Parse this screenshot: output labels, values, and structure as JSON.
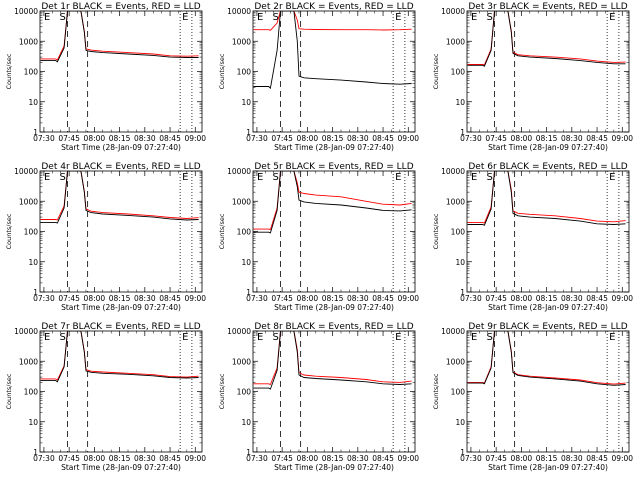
{
  "chart_data": [
    {
      "title": "Det 1r BLACK = Events, RED = LLD",
      "type": "line",
      "xlabel": "Start Time (28-Jan-09 07:27:40)",
      "ylabel": "Counts/sec",
      "x_ticks": [
        "07:30",
        "07:45",
        "08:00",
        "08:15",
        "08:30",
        "08:45",
        "09:00"
      ],
      "xlim": [
        "07:27:40",
        "09:04:00"
      ],
      "y_scale": "log",
      "ylim": [
        1,
        10000
      ],
      "y_ticks": [
        "1",
        "10",
        "100",
        "1000",
        "10000"
      ],
      "markers": [
        "E",
        "S",
        "E"
      ],
      "dashed_lines": [
        "07:44",
        "07:56"
      ],
      "dotted_lines": [
        "08:51",
        "08:58"
      ],
      "series": [
        {
          "color": "#000000",
          "x": [
            "07:28",
            "07:37",
            "07:38",
            "07:42",
            "07:44",
            "07:52",
            "07:54",
            "07:55",
            "07:58",
            "08:05",
            "08:20",
            "08:35",
            "08:45",
            "08:55",
            "09:02"
          ],
          "values": [
            230,
            230,
            210,
            600,
            10000,
            10000,
            2000,
            500,
            460,
            420,
            380,
            340,
            300,
            290,
            290
          ]
        },
        {
          "color": "#ff0000",
          "x": [
            "07:28",
            "07:37",
            "07:38",
            "07:42",
            "07:44",
            "07:52",
            "07:54",
            "07:55",
            "07:58",
            "08:05",
            "08:20",
            "08:35",
            "08:45",
            "08:55",
            "09:02"
          ],
          "values": [
            260,
            260,
            240,
            700,
            10000,
            10000,
            2200,
            560,
            510,
            470,
            420,
            380,
            330,
            320,
            330
          ]
        }
      ]
    },
    {
      "title": "Det 2r BLACK = Events, RED = LLD",
      "type": "line",
      "xlabel": "Start Time (28-Jan-09 07:27:40)",
      "ylabel": "Counts/sec",
      "x_ticks": [
        "07:30",
        "07:45",
        "08:00",
        "08:15",
        "08:30",
        "08:45",
        "09:00"
      ],
      "xlim": [
        "07:27:40",
        "09:04:00"
      ],
      "y_scale": "log",
      "ylim": [
        1,
        10000
      ],
      "y_ticks": [
        "1",
        "10",
        "100",
        "1000",
        "10000"
      ],
      "markers": [
        "E",
        "S",
        "E"
      ],
      "dashed_lines": [
        "07:44",
        "07:56"
      ],
      "dotted_lines": [
        "08:51",
        "08:58"
      ],
      "series": [
        {
          "color": "#000000",
          "x": [
            "07:28",
            "07:37",
            "07:38",
            "07:42",
            "07:44",
            "07:52",
            "07:54",
            "07:55",
            "07:58",
            "08:05",
            "08:20",
            "08:35",
            "08:45",
            "08:55",
            "09:02"
          ],
          "values": [
            32,
            32,
            28,
            500,
            10000,
            10000,
            1000,
            70,
            62,
            58,
            52,
            45,
            40,
            38,
            40
          ]
        },
        {
          "color": "#ff0000",
          "x": [
            "07:28",
            "07:37",
            "07:38",
            "07:42",
            "07:44",
            "07:52",
            "07:54",
            "07:55",
            "07:58",
            "08:05",
            "08:20",
            "08:35",
            "08:45",
            "08:55",
            "09:02"
          ],
          "values": [
            2400,
            2400,
            2300,
            4000,
            10000,
            10000,
            5000,
            2600,
            2500,
            2450,
            2400,
            2400,
            2350,
            2400,
            2500
          ]
        }
      ]
    },
    {
      "title": "Det 3r BLACK = Events, RED = LLD",
      "type": "line",
      "xlabel": "Start Time (28-Jan-09 07:27:40)",
      "ylabel": "Counts/sec",
      "x_ticks": [
        "07:30",
        "07:45",
        "08:00",
        "08:15",
        "08:30",
        "08:45",
        "09:00"
      ],
      "xlim": [
        "07:27:40",
        "09:04:00"
      ],
      "y_scale": "log",
      "ylim": [
        1,
        10000
      ],
      "y_ticks": [
        "1",
        "10",
        "100",
        "1000",
        "10000"
      ],
      "markers": [
        "E",
        "S",
        "E"
      ],
      "dashed_lines": [
        "07:44",
        "07:56"
      ],
      "dotted_lines": [
        "08:51",
        "08:58"
      ],
      "series": [
        {
          "color": "#000000",
          "x": [
            "07:28",
            "07:37",
            "07:38",
            "07:42",
            "07:44",
            "07:52",
            "07:54",
            "07:55",
            "07:58",
            "08:05",
            "08:20",
            "08:35",
            "08:45",
            "08:55",
            "09:02"
          ],
          "values": [
            160,
            160,
            150,
            500,
            10000,
            10000,
            2000,
            400,
            330,
            300,
            270,
            230,
            200,
            180,
            180
          ]
        },
        {
          "color": "#ff0000",
          "x": [
            "07:28",
            "07:37",
            "07:38",
            "07:42",
            "07:44",
            "07:52",
            "07:54",
            "07:55",
            "07:58",
            "08:05",
            "08:20",
            "08:35",
            "08:45",
            "08:55",
            "09:02"
          ],
          "values": [
            170,
            170,
            165,
            550,
            10000,
            10000,
            2200,
            430,
            360,
            330,
            300,
            260,
            220,
            200,
            205
          ]
        }
      ]
    },
    {
      "title": "Det 4r BLACK = Events, RED = LLD",
      "type": "line",
      "xlabel": "Start Time (28-Jan-09 07:27:40)",
      "ylabel": "Counts/sec",
      "x_ticks": [
        "07:30",
        "07:45",
        "08:00",
        "08:15",
        "08:30",
        "08:45",
        "09:00"
      ],
      "xlim": [
        "07:27:40",
        "09:04:00"
      ],
      "y_scale": "log",
      "ylim": [
        1,
        10000
      ],
      "y_ticks": [
        "1",
        "10",
        "100",
        "1000",
        "10000"
      ],
      "markers": [
        "E",
        "S",
        "E"
      ],
      "dashed_lines": [
        "07:44",
        "07:56"
      ],
      "dotted_lines": [
        "08:51",
        "08:58"
      ],
      "series": [
        {
          "color": "#000000",
          "x": [
            "07:28",
            "07:37",
            "07:38",
            "07:42",
            "07:44",
            "07:52",
            "07:54",
            "07:55",
            "07:58",
            "08:05",
            "08:20",
            "08:35",
            "08:45",
            "08:55",
            "09:02"
          ],
          "values": [
            200,
            200,
            190,
            600,
            10000,
            10000,
            2000,
            500,
            420,
            380,
            340,
            300,
            260,
            240,
            250
          ]
        },
        {
          "color": "#ff0000",
          "x": [
            "07:28",
            "07:37",
            "07:38",
            "07:42",
            "07:44",
            "07:52",
            "07:54",
            "07:55",
            "07:58",
            "08:05",
            "08:20",
            "08:35",
            "08:45",
            "08:55",
            "09:02"
          ],
          "values": [
            250,
            250,
            240,
            700,
            10000,
            10000,
            2200,
            560,
            470,
            420,
            380,
            330,
            290,
            270,
            285
          ]
        }
      ]
    },
    {
      "title": "Det 5r BLACK = Events, RED = LLD",
      "type": "line",
      "xlabel": "Start Time (28-Jan-09 07:27:40)",
      "ylabel": "Counts/sec",
      "x_ticks": [
        "07:30",
        "07:45",
        "08:00",
        "08:15",
        "08:30",
        "08:45",
        "09:00"
      ],
      "xlim": [
        "07:27:40",
        "09:04:00"
      ],
      "y_scale": "log",
      "ylim": [
        1,
        10000
      ],
      "y_ticks": [
        "1",
        "10",
        "100",
        "1000",
        "10000"
      ],
      "markers": [
        "E",
        "S",
        "E"
      ],
      "dashed_lines": [
        "07:44",
        "07:56"
      ],
      "dotted_lines": [
        "08:51",
        "08:58"
      ],
      "series": [
        {
          "color": "#000000",
          "x": [
            "07:28",
            "07:37",
            "07:38",
            "07:42",
            "07:44",
            "07:52",
            "07:54",
            "07:55",
            "07:58",
            "08:05",
            "08:20",
            "08:35",
            "08:45",
            "08:55",
            "09:02"
          ],
          "values": [
            95,
            95,
            90,
            500,
            10000,
            10000,
            3000,
            1100,
            950,
            850,
            750,
            600,
            500,
            480,
            520
          ]
        },
        {
          "color": "#ff0000",
          "x": [
            "07:28",
            "07:37",
            "07:38",
            "07:42",
            "07:44",
            "07:52",
            "07:54",
            "07:55",
            "07:58",
            "08:05",
            "08:20",
            "08:35",
            "08:45",
            "08:55",
            "09:02"
          ],
          "values": [
            120,
            120,
            115,
            600,
            10000,
            10000,
            4000,
            2000,
            1800,
            1600,
            1400,
            1000,
            800,
            750,
            850
          ]
        }
      ]
    },
    {
      "title": "Det 6r BLACK = Events, RED = LLD",
      "type": "line",
      "xlabel": "Start Time (28-Jan-09 07:27:40)",
      "ylabel": "Counts/sec",
      "x_ticks": [
        "07:30",
        "07:45",
        "08:00",
        "08:15",
        "08:30",
        "08:45",
        "09:00"
      ],
      "xlim": [
        "07:27:40",
        "09:04:00"
      ],
      "y_scale": "log",
      "ylim": [
        1,
        10000
      ],
      "y_ticks": [
        "1",
        "10",
        "100",
        "1000",
        "10000"
      ],
      "markers": [
        "E",
        "S",
        "E"
      ],
      "dashed_lines": [
        "07:44",
        "07:56"
      ],
      "dotted_lines": [
        "08:51",
        "08:58"
      ],
      "series": [
        {
          "color": "#000000",
          "x": [
            "07:28",
            "07:37",
            "07:38",
            "07:42",
            "07:44",
            "07:52",
            "07:54",
            "07:55",
            "07:58",
            "08:05",
            "08:20",
            "08:35",
            "08:45",
            "08:55",
            "09:02"
          ],
          "values": [
            170,
            170,
            160,
            550,
            10000,
            10000,
            2000,
            400,
            330,
            300,
            270,
            220,
            180,
            170,
            180
          ]
        },
        {
          "color": "#ff0000",
          "x": [
            "07:28",
            "07:37",
            "07:38",
            "07:42",
            "07:44",
            "07:52",
            "07:54",
            "07:55",
            "07:58",
            "08:05",
            "08:20",
            "08:35",
            "08:45",
            "08:55",
            "09:02"
          ],
          "values": [
            200,
            200,
            190,
            650,
            10000,
            10000,
            2400,
            480,
            400,
            370,
            330,
            270,
            220,
            210,
            230
          ]
        }
      ]
    },
    {
      "title": "Det 7r BLACK = Events, RED = LLD",
      "type": "line",
      "xlabel": "Start Time (28-Jan-09 07:27:40)",
      "ylabel": "Counts/sec",
      "x_ticks": [
        "07:30",
        "07:45",
        "08:00",
        "08:15",
        "08:30",
        "08:45",
        "09:00"
      ],
      "xlim": [
        "07:27:40",
        "09:04:00"
      ],
      "y_scale": "log",
      "ylim": [
        1,
        10000
      ],
      "y_ticks": [
        "1",
        "10",
        "100",
        "1000",
        "10000"
      ],
      "markers": [
        "E",
        "S",
        "E"
      ],
      "dashed_lines": [
        "07:44",
        "07:56"
      ],
      "dotted_lines": [
        "08:51",
        "08:58"
      ],
      "series": [
        {
          "color": "#000000",
          "x": [
            "07:28",
            "07:37",
            "07:38",
            "07:42",
            "07:44",
            "07:52",
            "07:54",
            "07:55",
            "07:58",
            "08:05",
            "08:20",
            "08:35",
            "08:45",
            "08:55",
            "09:02"
          ],
          "values": [
            230,
            230,
            210,
            650,
            10000,
            10000,
            2000,
            480,
            430,
            400,
            370,
            330,
            290,
            280,
            290
          ]
        },
        {
          "color": "#ff0000",
          "x": [
            "07:28",
            "07:37",
            "07:38",
            "07:42",
            "07:44",
            "07:52",
            "07:54",
            "07:55",
            "07:58",
            "08:05",
            "08:20",
            "08:35",
            "08:45",
            "08:55",
            "09:02"
          ],
          "values": [
            260,
            260,
            240,
            700,
            10000,
            10000,
            2200,
            530,
            470,
            440,
            400,
            360,
            310,
            300,
            320
          ]
        }
      ]
    },
    {
      "title": "Det 8r BLACK = Events, RED = LLD",
      "type": "line",
      "xlabel": "Start Time (28-Jan-09 07:27:40)",
      "ylabel": "Counts/sec",
      "x_ticks": [
        "07:30",
        "07:45",
        "08:00",
        "08:15",
        "08:30",
        "08:45",
        "09:00"
      ],
      "xlim": [
        "07:27:40",
        "09:04:00"
      ],
      "y_scale": "log",
      "ylim": [
        1,
        10000
      ],
      "y_ticks": [
        "1",
        "10",
        "100",
        "1000",
        "10000"
      ],
      "markers": [
        "E",
        "S",
        "E"
      ],
      "dashed_lines": [
        "07:44",
        "07:56"
      ],
      "dotted_lines": [
        "08:51",
        "08:58"
      ],
      "series": [
        {
          "color": "#000000",
          "x": [
            "07:28",
            "07:37",
            "07:38",
            "07:42",
            "07:44",
            "07:52",
            "07:54",
            "07:55",
            "07:58",
            "08:05",
            "08:20",
            "08:35",
            "08:45",
            "08:55",
            "09:02"
          ],
          "values": [
            130,
            130,
            120,
            500,
            10000,
            10000,
            2000,
            350,
            290,
            270,
            240,
            210,
            180,
            170,
            180
          ]
        },
        {
          "color": "#ff0000",
          "x": [
            "07:28",
            "07:37",
            "07:38",
            "07:42",
            "07:44",
            "07:52",
            "07:54",
            "07:55",
            "07:58",
            "08:05",
            "08:20",
            "08:35",
            "08:45",
            "08:55",
            "09:02"
          ],
          "values": [
            180,
            180,
            170,
            600,
            10000,
            10000,
            2400,
            420,
            350,
            320,
            290,
            250,
            210,
            200,
            220
          ]
        }
      ]
    },
    {
      "title": "Det 9r BLACK = Events, RED = LLD",
      "type": "line",
      "xlabel": "Start Time (28-Jan-09 07:27:40)",
      "ylabel": "Counts/sec",
      "x_ticks": [
        "07:30",
        "07:45",
        "08:00",
        "08:15",
        "08:30",
        "08:45",
        "09:00"
      ],
      "xlim": [
        "07:27:40",
        "09:04:00"
      ],
      "y_scale": "log",
      "ylim": [
        1,
        10000
      ],
      "y_ticks": [
        "1",
        "10",
        "100",
        "1000",
        "10000"
      ],
      "markers": [
        "E",
        "S",
        "E"
      ],
      "dashed_lines": [
        "07:44",
        "07:56"
      ],
      "dotted_lines": [
        "08:51",
        "08:58"
      ],
      "series": [
        {
          "color": "#000000",
          "x": [
            "07:28",
            "07:37",
            "07:38",
            "07:42",
            "07:44",
            "07:52",
            "07:54",
            "07:55",
            "07:58",
            "08:05",
            "08:20",
            "08:35",
            "08:45",
            "08:55",
            "09:02"
          ],
          "values": [
            190,
            190,
            180,
            600,
            10000,
            10000,
            2000,
            420,
            340,
            300,
            260,
            220,
            180,
            160,
            170
          ]
        },
        {
          "color": "#ff0000",
          "x": [
            "07:28",
            "07:37",
            "07:38",
            "07:42",
            "07:44",
            "07:52",
            "07:54",
            "07:55",
            "07:58",
            "08:05",
            "08:20",
            "08:35",
            "08:45",
            "08:55",
            "09:02"
          ],
          "values": [
            200,
            200,
            190,
            650,
            10000,
            10000,
            2200,
            440,
            360,
            320,
            280,
            240,
            195,
            175,
            190
          ]
        }
      ]
    }
  ]
}
